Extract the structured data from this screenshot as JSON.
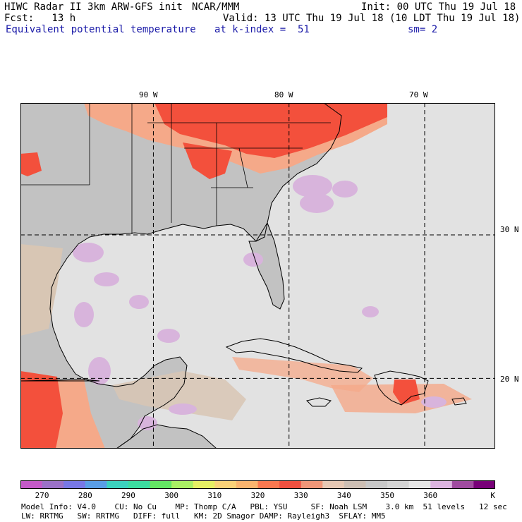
{
  "header": {
    "title": "HIWC Radar II 3km ARW-GFS init",
    "center": "NCAR/MMM",
    "init": "Init: 00 UTC Thu 19 Jul 18",
    "fcst": "Fcst:   13 h",
    "valid": "Valid: 13 UTC Thu 19 Jul 18 (10 LDT Thu 19 Jul 18)",
    "field": "Equivalent potential temperature",
    "level": "at k-index =  51",
    "smooth": "sm= 2"
  },
  "map": {
    "lon_labels": [
      "90 W",
      "80 W",
      "70 W"
    ],
    "lat_labels": [
      "30 N",
      "20 N"
    ],
    "lon_range": [
      -99.8,
      -64.8
    ],
    "lat_range": [
      15.1,
      39.2
    ],
    "gridlines": {
      "lons": [
        -90,
        -80,
        -70
      ],
      "lats": [
        30,
        20
      ]
    },
    "colors": {
      "land": "#c2c2c2",
      "ocean": "#d6d6d6",
      "light": "#ececec",
      "tan": "#d8c6b4",
      "salmon": "#f5a989",
      "red": "#f3503c",
      "lavender": "#d8b4dc",
      "coast": "#000000"
    }
  },
  "colorbar": {
    "labels": [
      "270",
      "280",
      "290",
      "300",
      "310",
      "320",
      "330",
      "340",
      "350",
      "360"
    ],
    "unit": "K",
    "colors": [
      "#c45ac8",
      "#9b72c8",
      "#7878e6",
      "#5a9ee6",
      "#3cd2be",
      "#3cdca0",
      "#64e664",
      "#aaf064",
      "#e6f064",
      "#fad278",
      "#fab46e",
      "#fa7850",
      "#f05040",
      "#f09678",
      "#e6c8b4",
      "#cdbfb4",
      "#c8c8c8",
      "#d4d4d4",
      "#e6e6e6",
      "#dcb4e0",
      "#a04ba0",
      "#780078"
    ]
  },
  "model_info": {
    "line1": "Model Info: V4.0    CU: No Cu    MP: Thomp C/A   PBL: YSU     SF: Noah LSM    3.0 km  51 levels   12 sec",
    "line2": "LW: RRTMG   SW: RRTMG   DIFF: full   KM: 2D Smagor DAMP: Rayleigh3  SFLAY: MM5"
  }
}
